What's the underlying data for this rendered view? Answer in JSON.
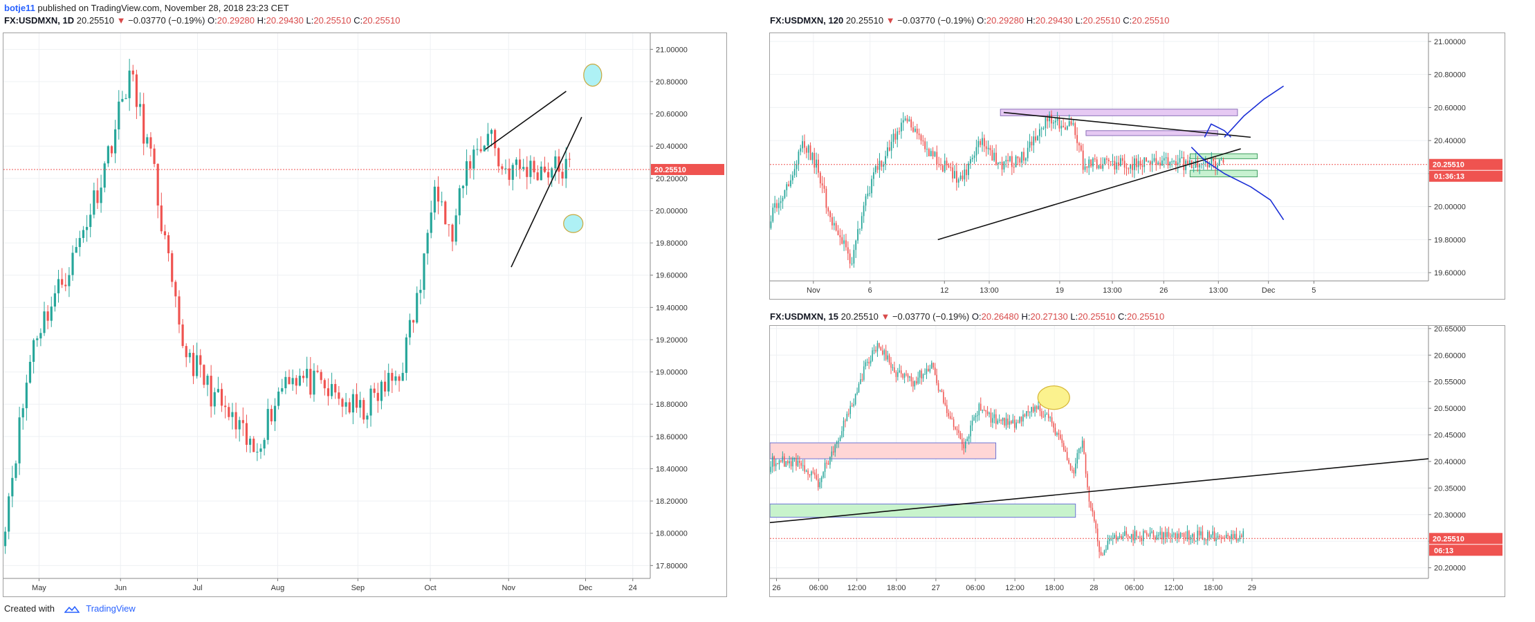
{
  "header": {
    "author": "botje11",
    "published_text": " published on TradingView.com, November 28, 2018 23:23 CET"
  },
  "footer": {
    "created_with": "Created with",
    "brand": "TradingView"
  },
  "colors": {
    "up": "#26a69a",
    "down": "#ef5350",
    "price_line": "#ef5350",
    "arrow_down": "#d84a4a"
  },
  "charts": [
    {
      "id": "daily",
      "legend": {
        "symbol": "FX:USDMXN, 1D",
        "last": "20.25510",
        "arrow": "▼",
        "change": "−0.03770 (−0.19%)",
        "o_label": "O:",
        "o": "20.29280",
        "h_label": "H:",
        "h": "20.29430",
        "l_label": "L:",
        "l": "20.25510",
        "c_label": "C:",
        "c": "20.25510"
      },
      "price_tag": "20.25510",
      "y_ticks": [
        "21.00000",
        "20.80000",
        "20.60000",
        "20.40000",
        "20.20000",
        "20.00000",
        "19.80000",
        "19.60000",
        "19.40000",
        "19.20000",
        "19.00000",
        "18.80000",
        "18.60000",
        "18.40000",
        "18.20000",
        "18.00000",
        "17.80000"
      ],
      "x_ticks": [
        "May",
        "Jun",
        "Jul",
        "Aug",
        "Sep",
        "Oct",
        "Nov",
        "Dec",
        "24"
      ]
    },
    {
      "id": "h2",
      "legend": {
        "symbol": "FX:USDMXN, 120",
        "last": "20.25510",
        "arrow": "▼",
        "change": "−0.03770 (−0.19%)",
        "o_label": "O:",
        "o": "20.29280",
        "h_label": "H:",
        "h": "20.29430",
        "l_label": "L:",
        "l": "20.25510",
        "c_label": "C:",
        "c": "20.25510"
      },
      "price_tag": "20.25510",
      "countdown_tag": "01:36:13",
      "y_ticks": [
        "21.00000",
        "20.80000",
        "20.60000",
        "20.40000",
        "20.20000",
        "20.00000",
        "19.80000",
        "19.60000"
      ],
      "x_ticks": [
        "Nov",
        "6",
        "12",
        "13:00",
        "19",
        "13:00",
        "26",
        "13:00",
        "Dec",
        "5"
      ]
    },
    {
      "id": "m15",
      "legend": {
        "symbol": "FX:USDMXN, 15",
        "last": "20.25510",
        "arrow": "▼",
        "change": "−0.03770 (−0.19%)",
        "o_label": "O:",
        "o": "20.26480",
        "h_label": "H:",
        "h": "20.27130",
        "l_label": "L:",
        "l": "20.25510",
        "c_label": "C:",
        "c": "20.25510"
      },
      "price_tag": "20.25510",
      "countdown_tag": "06:13",
      "y_ticks": [
        "20.65000",
        "20.60000",
        "20.55000",
        "20.50000",
        "20.45000",
        "20.40000",
        "20.35000",
        "20.30000",
        "20.25000",
        "20.20000"
      ],
      "x_ticks": [
        "26",
        "06:00",
        "12:00",
        "18:00",
        "27",
        "06:00",
        "12:00",
        "18:00",
        "28",
        "06:00",
        "12:00",
        "18:00",
        "29"
      ]
    }
  ],
  "chart_data": [
    {
      "type": "candlestick",
      "symbol": "FX:USDMXN",
      "interval": "1D",
      "ylim": [
        17.72,
        21.1
      ],
      "last_price": 20.2551,
      "key_points": [
        {
          "x": "Apr 20",
          "price": 18.1
        },
        {
          "x": "May 8",
          "price": 19.3
        },
        {
          "x": "Jun 1",
          "price": 20.2
        },
        {
          "x": "Jun 14",
          "price": 20.9
        },
        {
          "x": "Jul 1",
          "price": 19.7
        },
        {
          "x": "Aug 1",
          "price": 18.55
        },
        {
          "x": "Aug 20",
          "price": 18.5
        },
        {
          "x": "Sep 1",
          "price": 19.0
        },
        {
          "x": "Oct 1",
          "price": 18.75
        },
        {
          "x": "Oct 25",
          "price": 19.6
        },
        {
          "x": "Oct 31",
          "price": 20.35
        },
        {
          "x": "Nov 10",
          "price": 19.8
        },
        {
          "x": "Nov 26",
          "price": 20.62
        },
        {
          "x": "Nov 28",
          "price": 20.2551
        }
      ],
      "annotations": [
        "rising wedge trendlines",
        "target ellipse near 20.85",
        "target ellipse near 19.92"
      ]
    },
    {
      "type": "candlestick",
      "symbol": "FX:USDMXN",
      "interval": "120",
      "ylim": [
        19.55,
        21.05
      ],
      "last_price": 20.2551,
      "key_points": [
        {
          "x": "Oct 31",
          "price": 19.95
        },
        {
          "x": "Nov 2",
          "price": 20.08
        },
        {
          "x": "Nov 5",
          "price": 20.4
        },
        {
          "x": "Nov 8",
          "price": 19.95
        },
        {
          "x": "Nov 9",
          "price": 19.62
        },
        {
          "x": "Nov 12",
          "price": 20.3
        },
        {
          "x": "Nov 14",
          "price": 20.55
        },
        {
          "x": "Nov 19",
          "price": 20.2
        },
        {
          "x": "Nov 22",
          "price": 20.22
        },
        {
          "x": "Nov 26",
          "price": 20.6
        },
        {
          "x": "Nov 28",
          "price": 20.2551
        }
      ],
      "annotations": [
        "resistance zone ~20.57",
        "support zone ~20.20",
        "projected paths up and down"
      ]
    },
    {
      "type": "candlestick",
      "symbol": "FX:USDMXN",
      "interval": "15",
      "ylim": [
        20.18,
        20.655
      ],
      "last_price": 20.2551,
      "key_points": [
        {
          "x": "26 00:00",
          "price": 20.4
        },
        {
          "x": "26 08:00",
          "price": 20.36
        },
        {
          "x": "26 12:00",
          "price": 20.42
        },
        {
          "x": "26 18:00",
          "price": 20.58
        },
        {
          "x": "26 21:00",
          "price": 20.62
        },
        {
          "x": "27 03:00",
          "price": 20.58
        },
        {
          "x": "27 08:00",
          "price": 20.55
        },
        {
          "x": "27 14:00",
          "price": 20.42
        },
        {
          "x": "27 18:00",
          "price": 20.48
        },
        {
          "x": "28 06:00",
          "price": 20.47
        },
        {
          "x": "28 12:00",
          "price": 20.48
        },
        {
          "x": "28 15:00",
          "price": 20.37
        },
        {
          "x": "28 18:00",
          "price": 20.44
        },
        {
          "x": "28 20:00",
          "price": 20.22
        },
        {
          "x": "29 00:00",
          "price": 20.2551
        }
      ],
      "annotations": [
        "supply zone ~20.42",
        "demand zone ~20.29",
        "rising trendline",
        "highlight ellipse ~20.52"
      ]
    }
  ]
}
